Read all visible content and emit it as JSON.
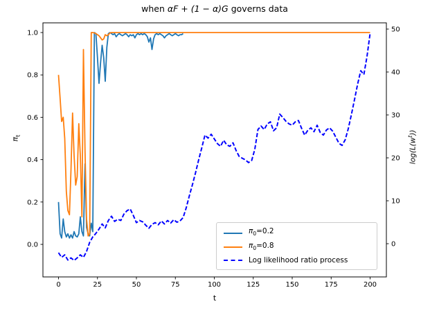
{
  "figure_title_parts": {
    "prefix": "when ",
    "math": "αF + (1 − α)G",
    "suffix": " governs data"
  },
  "chart_data": {
    "type": "line",
    "title": "when αF + (1 − α)G governs data",
    "grid": false,
    "legend_position": "lower right",
    "axes": {
      "x": {
        "label": "t",
        "ticks": [
          0,
          25,
          50,
          75,
          100,
          125,
          150,
          175,
          200
        ],
        "lim": [
          -10,
          210
        ]
      },
      "y_left": {
        "label_sym": "π",
        "label_sub": "t",
        "ticks": [
          "0.0",
          "0.2",
          "0.4",
          "0.6",
          "0.8",
          "1.0"
        ],
        "lim": [
          -0.05,
          1.05
        ]
      },
      "y_right": {
        "label_pre": "log(L(w",
        "label_sup": "t",
        "label_post": "))",
        "ticks": [
          0,
          10,
          20,
          30,
          40,
          50
        ],
        "lim": [
          -5,
          52
        ]
      }
    },
    "series": [
      {
        "name": "pi0=0.2",
        "color": "#1f77b4",
        "style": "solid",
        "axis": "left",
        "linewidth": 1.8,
        "x": [
          0,
          1,
          2,
          3,
          4,
          5,
          6,
          7,
          8,
          9,
          10,
          11,
          12,
          13,
          14,
          15,
          16,
          17,
          18,
          19,
          20,
          21,
          22,
          23,
          24,
          25,
          26,
          27,
          28,
          29,
          30,
          31,
          32,
          33,
          34,
          35,
          36,
          37,
          38,
          39,
          40,
          41,
          42,
          43,
          44,
          45,
          46,
          47,
          48,
          49,
          50,
          51,
          52,
          53,
          54,
          55,
          56,
          57,
          58,
          59,
          60,
          61,
          62,
          63,
          64,
          65,
          66,
          67,
          68,
          69,
          70,
          71,
          72,
          73,
          74,
          75,
          76,
          77,
          78,
          79,
          80
        ],
        "y": [
          0.2,
          0.05,
          0.03,
          0.12,
          0.06,
          0.035,
          0.05,
          0.03,
          0.045,
          0.03,
          0.06,
          0.04,
          0.035,
          0.05,
          0.13,
          0.06,
          0.04,
          0.38,
          0.08,
          0.05,
          0.04,
          0.1,
          0.06,
          1.0,
          0.995,
          0.88,
          0.76,
          0.86,
          0.94,
          0.88,
          0.77,
          0.93,
          0.995,
          1.0,
          0.995,
          0.99,
          0.995,
          0.98,
          0.99,
          0.995,
          0.99,
          0.985,
          0.99,
          0.995,
          0.99,
          0.98,
          0.99,
          0.985,
          0.99,
          0.975,
          0.99,
          0.995,
          0.99,
          0.995,
          0.99,
          0.995,
          0.99,
          0.98,
          0.955,
          0.975,
          0.92,
          0.97,
          0.99,
          0.995,
          0.99,
          0.995,
          0.99,
          0.985,
          0.975,
          0.985,
          0.99,
          0.995,
          0.99,
          0.985,
          0.99,
          0.995,
          0.99,
          0.985,
          0.99,
          0.99,
          0.995
        ]
      },
      {
        "name": "pi0=0.8",
        "color": "#ff7f0e",
        "style": "solid",
        "axis": "left",
        "linewidth": 1.8,
        "x": [
          0,
          1,
          2,
          3,
          4,
          5,
          6,
          7,
          8,
          9,
          10,
          11,
          12,
          13,
          14,
          15,
          16,
          17,
          18,
          19,
          20,
          21,
          22,
          23,
          24,
          25,
          26,
          27,
          28,
          29,
          30,
          31,
          32,
          33,
          34,
          35,
          36,
          37,
          38,
          39,
          40,
          200
        ],
        "y": [
          0.8,
          0.69,
          0.58,
          0.6,
          0.5,
          0.25,
          0.16,
          0.14,
          0.35,
          0.62,
          0.42,
          0.28,
          0.32,
          0.57,
          0.42,
          0.13,
          0.92,
          0.44,
          0.12,
          0.04,
          0.05,
          1.0,
          1.0,
          0.998,
          0.995,
          0.99,
          0.985,
          0.975,
          0.965,
          0.97,
          0.99,
          0.985,
          0.99,
          0.998,
          1.0,
          1.0,
          1.0,
          1.0,
          1.0,
          1.0,
          1.0,
          1.0
        ]
      },
      {
        "name": "Log likelihood ratio process",
        "color": "#0000ff",
        "style": "dashed",
        "axis": "right",
        "linewidth": 2,
        "x": [
          0,
          2,
          4,
          6,
          8,
          10,
          12,
          14,
          16,
          18,
          20,
          22,
          24,
          26,
          28,
          30,
          32,
          34,
          36,
          38,
          40,
          42,
          44,
          46,
          48,
          50,
          52,
          54,
          56,
          58,
          60,
          62,
          64,
          66,
          68,
          70,
          72,
          74,
          76,
          78,
          80,
          82,
          84,
          86,
          88,
          90,
          92,
          94,
          96,
          98,
          100,
          102,
          104,
          106,
          108,
          110,
          112,
          114,
          116,
          118,
          120,
          122,
          124,
          126,
          128,
          130,
          132,
          134,
          136,
          138,
          140,
          142,
          144,
          146,
          148,
          150,
          152,
          154,
          156,
          158,
          160,
          162,
          164,
          166,
          168,
          170,
          172,
          174,
          176,
          178,
          180,
          182,
          184,
          186,
          188,
          190,
          192,
          194,
          196,
          198,
          200
        ],
        "y": [
          -2.1,
          -3.2,
          -2.6,
          -3.8,
          -3.3,
          -3.9,
          -3.3,
          -2.6,
          -3.2,
          -1.8,
          0.3,
          1.6,
          2.4,
          3.4,
          4.6,
          3.7,
          5.4,
          6.4,
          5.2,
          5.7,
          5.4,
          6.9,
          7.7,
          8.1,
          6.6,
          4.9,
          5.4,
          5.1,
          4.3,
          3.6,
          4.5,
          4.9,
          4.4,
          5.3,
          4.6,
          5.4,
          4.8,
          5.6,
          5.0,
          5.3,
          6.1,
          8.4,
          11.2,
          13.8,
          16.6,
          19.6,
          22.4,
          25.3,
          24.6,
          25.5,
          24.4,
          23.3,
          22.7,
          24.1,
          23.0,
          22.7,
          23.5,
          21.7,
          20.3,
          19.9,
          19.5,
          18.9,
          19.4,
          22.0,
          26.6,
          27.4,
          26.6,
          27.9,
          28.4,
          26.3,
          27.0,
          30.2,
          29.4,
          28.5,
          27.9,
          27.6,
          28.4,
          28.7,
          26.9,
          25.3,
          26.4,
          27.0,
          26.1,
          27.6,
          25.9,
          25.3,
          26.5,
          27.0,
          26.2,
          24.8,
          23.4,
          22.9,
          24.2,
          26.8,
          30.1,
          33.6,
          37.2,
          40.3,
          39.4,
          43.6,
          49.0
        ]
      }
    ],
    "legend": {
      "entries": [
        {
          "sym": "π",
          "sub": "0",
          "rest": "=0.2",
          "color": "#1f77b4",
          "style": "solid"
        },
        {
          "sym": "π",
          "sub": "0",
          "rest": "=0.8",
          "color": "#ff7f0e",
          "style": "solid"
        },
        {
          "label": "Log likelihood ratio process",
          "color": "#0000ff",
          "style": "dashed"
        }
      ]
    }
  }
}
